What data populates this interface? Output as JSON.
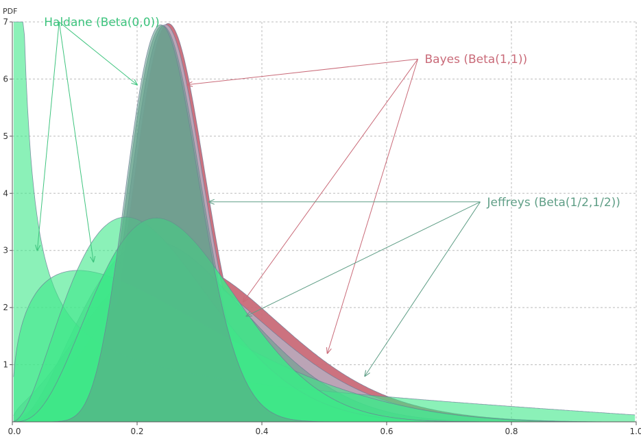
{
  "chart_data": {
    "type": "area",
    "ylabel": "PDF",
    "xlim": [
      0,
      1
    ],
    "ylim": [
      0,
      7
    ],
    "x_ticks": [
      "0.0",
      "0.2",
      "0.4",
      "0.6",
      "0.8",
      "1.0"
    ],
    "y_ticks": [
      "1",
      "2",
      "3",
      "4",
      "5",
      "6",
      "7"
    ],
    "grid": true,
    "colors": {
      "bayes": "#c96a78",
      "jeffreys": "#5f9e86",
      "haldane": "#3ee888",
      "haldane_text": "#3ec47e",
      "grid": "#bbbbbb"
    },
    "groups": [
      {
        "a": 0,
        "b": 0
      },
      {
        "a": 1,
        "b": 3
      },
      {
        "a": 4,
        "b": 12
      },
      {
        "a": 3,
        "b": 8
      },
      {
        "a": 14,
        "b": 42
      }
    ],
    "annotations": [
      {
        "text": "Haldane (Beta(0,0))",
        "color_key": "haldane_text",
        "anchor": [
          0.075,
          7.0
        ],
        "targets": [
          [
            0.2,
            5.9
          ],
          [
            0.04,
            3.0
          ],
          [
            0.13,
            2.8
          ]
        ]
      },
      {
        "text": "Bayes (Beta(1,1))",
        "color_key": "bayes",
        "anchor": [
          0.65,
          6.35
        ],
        "targets": [
          [
            0.28,
            5.9
          ],
          [
            0.37,
            2.1
          ],
          [
            0.505,
            1.2
          ]
        ]
      },
      {
        "text": "Jeffreys (Beta(1/2,1/2))",
        "color_key": "jeffreys",
        "anchor": [
          0.75,
          3.85
        ],
        "targets": [
          [
            0.315,
            3.85
          ],
          [
            0.375,
            1.85
          ],
          [
            0.565,
            0.8
          ]
        ]
      }
    ]
  }
}
